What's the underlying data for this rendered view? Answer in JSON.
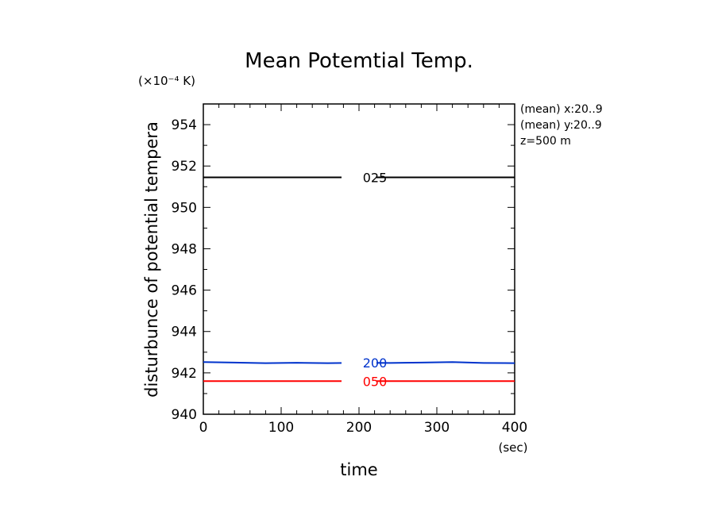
{
  "chart_data": {
    "type": "line",
    "title": "Mean Potemtial Temp.",
    "ylabel": "disturbunce of potential tempera",
    "yunit": "(×10⁻⁴ K)",
    "xlabel": "time",
    "xunit": "(sec)",
    "xlim": [
      0,
      400
    ],
    "ylim": [
      940,
      955
    ],
    "xticks": [
      0,
      100,
      200,
      300,
      400
    ],
    "yticks": [
      940,
      942,
      944,
      946,
      948,
      950,
      952,
      954
    ],
    "annotations": [
      "(mean) x:20..9",
      "(mean) y:20..9",
      "z=500 m"
    ],
    "series": [
      {
        "name": "025",
        "color": "#000000",
        "x": [
          0,
          400
        ],
        "y": [
          951.45,
          951.45
        ]
      },
      {
        "name": "200",
        "color": "#0033cc",
        "x": [
          0,
          40,
          80,
          120,
          160,
          200,
          240,
          280,
          320,
          360,
          400
        ],
        "y": [
          942.52,
          942.5,
          942.47,
          942.49,
          942.47,
          942.49,
          942.48,
          942.5,
          942.52,
          942.48,
          942.47
        ]
      },
      {
        "name": "050",
        "color": "#ff0000",
        "x": [
          0,
          400
        ],
        "y": [
          941.6,
          941.6
        ]
      }
    ]
  }
}
